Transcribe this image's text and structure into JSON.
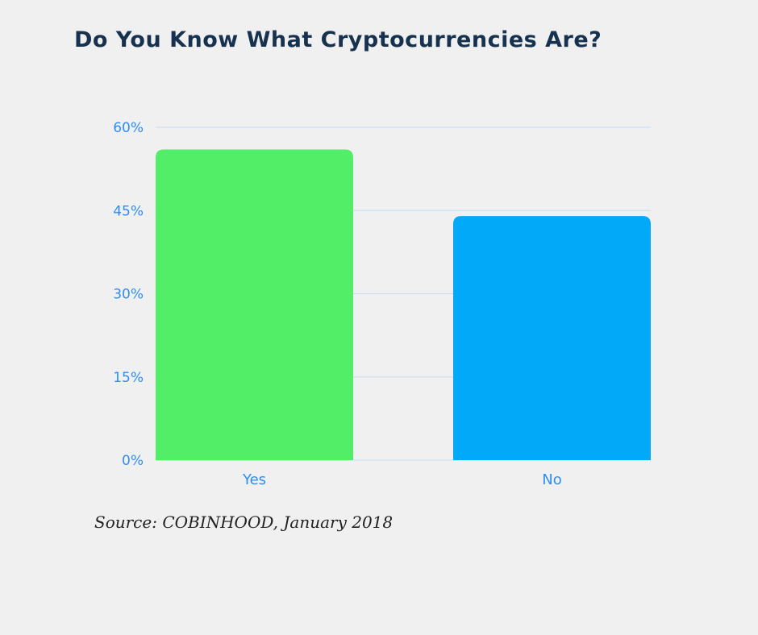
{
  "chart_data": {
    "type": "bar",
    "title": "Do You Know What Cryptocurrencies Are?",
    "categories": [
      "Yes",
      "No"
    ],
    "values": [
      56,
      44
    ],
    "colors": [
      "#52ee67",
      "#03a9f9"
    ],
    "ylim": [
      0,
      60
    ],
    "yticks": [
      0,
      15,
      30,
      45,
      60
    ],
    "ytick_labels": [
      "0%",
      "15%",
      "30%",
      "45%",
      "60%"
    ],
    "grid": true,
    "xlabel": "",
    "ylabel": "",
    "source": "Source: COBINHOOD, January 2018"
  }
}
